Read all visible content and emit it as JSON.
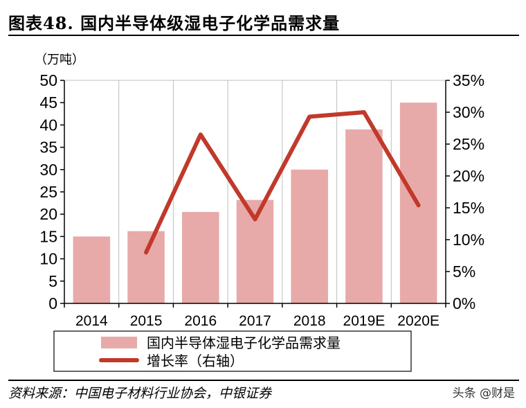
{
  "title": "图表48. 国内半导体级湿电子化学品需求量",
  "source": "资料来源：中国电子材料行业协会，中银证券",
  "watermark": "头条 @财是",
  "colors": {
    "bar": "#E8A9A9",
    "line": "#C0392B",
    "axis": "#000000",
    "grid": "#BFBFBF"
  },
  "chart_data": {
    "type": "bar+line",
    "categories": [
      "2014",
      "2015",
      "2016",
      "2017",
      "2018",
      "2019E",
      "2020E"
    ],
    "unit_left": "（万吨）",
    "left_axis": {
      "min": 0,
      "max": 50,
      "ticks": [
        "0",
        "5",
        "10",
        "15",
        "20",
        "25",
        "30",
        "35",
        "40",
        "45",
        "50"
      ]
    },
    "right_axis": {
      "min": 0,
      "max": 35,
      "ticks": [
        "0%",
        "5%",
        "10%",
        "15%",
        "20%",
        "25%",
        "30%",
        "35%"
      ]
    },
    "grid": true,
    "legend_position": "bottom",
    "series": [
      {
        "name": "国内半导体湿电子化学品需求量",
        "type": "bar",
        "axis": "left",
        "values": [
          15.0,
          16.2,
          20.5,
          23.2,
          30.0,
          39.0,
          45.0
        ]
      },
      {
        "name": "增长率（右轴）",
        "type": "line",
        "axis": "right",
        "values": [
          null,
          8.0,
          26.5,
          13.2,
          29.3,
          30.0,
          15.4
        ]
      }
    ]
  }
}
